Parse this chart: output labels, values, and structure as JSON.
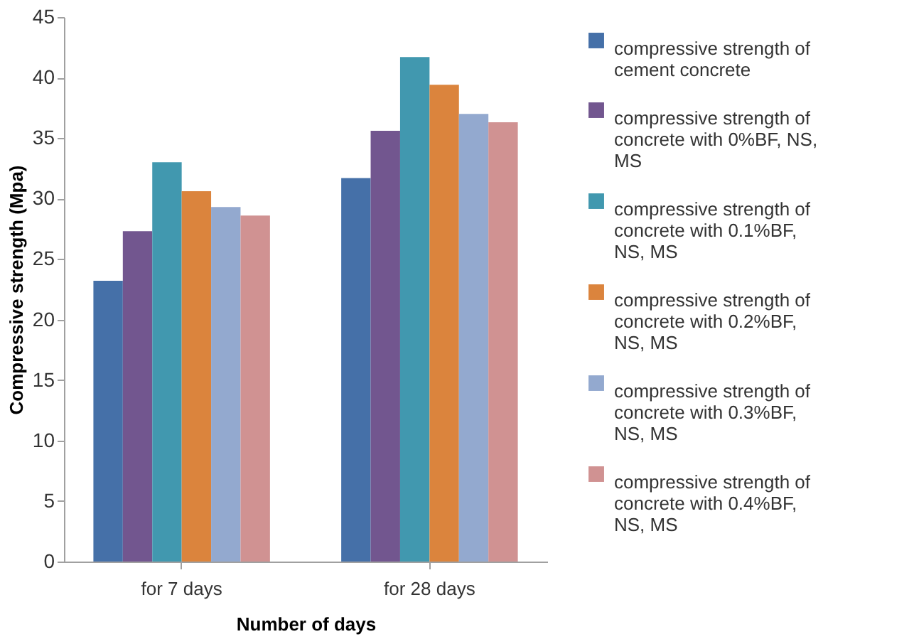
{
  "chart_data": {
    "type": "bar",
    "xlabel": "Number of days",
    "ylabel": "Compressive strength (Mpa)",
    "categories": [
      "for 7 days",
      "for 28 days"
    ],
    "series": [
      {
        "name": "compressive strength of cement concrete",
        "color": "#4570a8",
        "values": [
          23.2,
          31.7
        ]
      },
      {
        "name": "compressive strength of concrete with 0%BF, NS, MS",
        "color": "#72568f",
        "values": [
          27.3,
          35.6
        ]
      },
      {
        "name": "compressive strength of concrete with 0.1%BF, NS, MS",
        "color": "#4198af",
        "values": [
          33.0,
          41.7
        ]
      },
      {
        "name": "compressive strength of concrete with 0.2%BF, NS, MS",
        "color": "#db843d",
        "values": [
          30.6,
          39.4
        ]
      },
      {
        "name": "compressive strength of concrete with 0.3%BF, NS, MS",
        "color": "#93a9cf",
        "values": [
          29.3,
          37.0
        ]
      },
      {
        "name": "compressive strength of concrete with 0.4%BF, NS, MS",
        "color": "#d09292",
        "values": [
          28.6,
          36.3
        ]
      }
    ],
    "ylim": [
      0,
      45
    ],
    "yticks": [
      0,
      5,
      10,
      15,
      20,
      25,
      30,
      35,
      40,
      45
    ],
    "grid": false,
    "legend": "right"
  }
}
